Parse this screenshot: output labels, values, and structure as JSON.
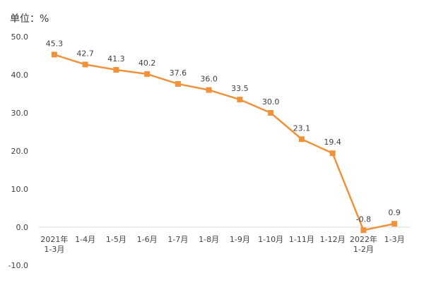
{
  "chart_data": {
    "type": "line",
    "unit_label": "单位：%",
    "categories": [
      [
        "2021年",
        "1-3月"
      ],
      [
        "1-4月"
      ],
      [
        "1-5月"
      ],
      [
        "1-6月"
      ],
      [
        "1-7月"
      ],
      [
        "1-8月"
      ],
      [
        "1-9月"
      ],
      [
        "1-10月"
      ],
      [
        "1-11月"
      ],
      [
        "1-12月"
      ],
      [
        "2022年",
        "1-2月"
      ],
      [
        "1-3月"
      ]
    ],
    "values": [
      45.3,
      42.7,
      41.3,
      40.2,
      37.6,
      36.0,
      33.5,
      30.0,
      23.1,
      19.4,
      -0.8,
      0.9
    ],
    "data_labels": [
      "45.3",
      "42.7",
      "41.3",
      "40.2",
      "37.6",
      "36.0",
      "33.5",
      "30.0",
      "23.1",
      "19.4",
      "-0.8",
      "0.9"
    ],
    "yticks": [
      "50.0",
      "40.0",
      "30.0",
      "20.0",
      "10.0",
      "0.0",
      "-10.0"
    ],
    "ylim": [
      -10,
      50
    ],
    "grid": false,
    "legend": "none",
    "colors": {
      "line": "#F0923B",
      "marker": "#F0923B",
      "text": "#404040",
      "axis": "#D9D9D9"
    }
  }
}
